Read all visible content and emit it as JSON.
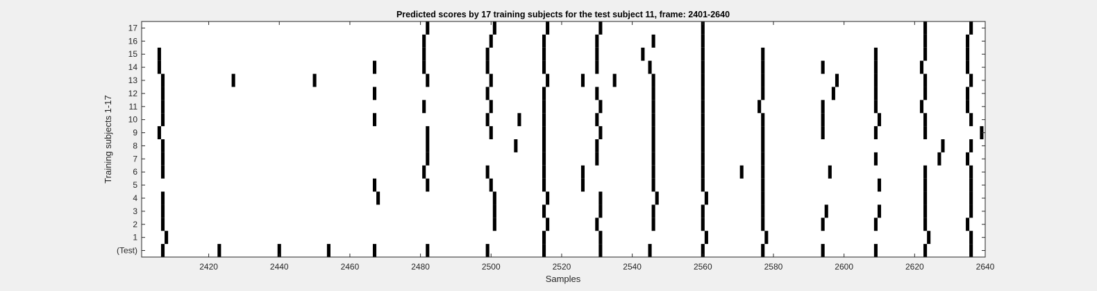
{
  "chart_data": {
    "type": "raster",
    "title": "Predicted scores by 17 training subjects for the test subject 11, frame: 2401-2640",
    "xlabel": "Samples",
    "ylabel": "Training subjects 1-17",
    "xlim": [
      2401,
      2640
    ],
    "x_ticks": [
      2420,
      2440,
      2460,
      2480,
      2500,
      2520,
      2540,
      2560,
      2580,
      2600,
      2620,
      2640
    ],
    "y_tick_labels": [
      "(Test)",
      "1",
      "2",
      "3",
      "4",
      "5",
      "6",
      "7",
      "8",
      "9",
      "10",
      "11",
      "12",
      "13",
      "14",
      "15",
      "16",
      "17"
    ],
    "grid": false,
    "series": [
      {
        "name": "(Test)",
        "events": [
          2407,
          2423,
          2440,
          2454,
          2467,
          2482,
          2499,
          2515,
          2531,
          2545,
          2560,
          2577,
          2594,
          2609,
          2623,
          2636
        ]
      },
      {
        "name": "1",
        "events": [
          2408,
          2515,
          2531,
          2561,
          2578,
          2624,
          2636
        ]
      },
      {
        "name": "2",
        "events": [
          2407,
          2501,
          2516,
          2530,
          2546,
          2560,
          2577,
          2594,
          2609,
          2623,
          2635
        ]
      },
      {
        "name": "3",
        "events": [
          2407,
          2501,
          2515,
          2531,
          2546,
          2560,
          2577,
          2595,
          2610,
          2623,
          2636
        ]
      },
      {
        "name": "4",
        "events": [
          2407,
          2468,
          2501,
          2516,
          2531,
          2547,
          2561,
          2577,
          2623,
          2636
        ]
      },
      {
        "name": "5",
        "events": [
          2467,
          2482,
          2500,
          2515,
          2526,
          2546,
          2560,
          2577,
          2610,
          2623,
          2636
        ]
      },
      {
        "name": "6",
        "events": [
          2407,
          2481,
          2499,
          2515,
          2526,
          2546,
          2560,
          2571,
          2577,
          2596,
          2623,
          2636
        ]
      },
      {
        "name": "7",
        "events": [
          2407,
          2482,
          2515,
          2530,
          2546,
          2560,
          2577,
          2609,
          2627,
          2635
        ]
      },
      {
        "name": "8",
        "events": [
          2407,
          2482,
          2507,
          2515,
          2530,
          2546,
          2560,
          2577,
          2628,
          2636
        ]
      },
      {
        "name": "9",
        "events": [
          2406,
          2482,
          2500,
          2515,
          2531,
          2546,
          2560,
          2577,
          2594,
          2609,
          2623,
          2639
        ]
      },
      {
        "name": "10",
        "events": [
          2407,
          2467,
          2499,
          2508,
          2515,
          2530,
          2546,
          2560,
          2577,
          2594,
          2610,
          2623,
          2636
        ]
      },
      {
        "name": "11",
        "events": [
          2407,
          2481,
          2500,
          2515,
          2531,
          2546,
          2560,
          2576,
          2594,
          2609,
          2622,
          2635
        ]
      },
      {
        "name": "12",
        "events": [
          2407,
          2467,
          2499,
          2515,
          2530,
          2546,
          2560,
          2577,
          2597,
          2609,
          2623,
          2635
        ]
      },
      {
        "name": "13",
        "events": [
          2407,
          2427,
          2450,
          2482,
          2500,
          2516,
          2526,
          2535,
          2546,
          2560,
          2577,
          2598,
          2609,
          2623,
          2636
        ]
      },
      {
        "name": "14",
        "events": [
          2406,
          2467,
          2481,
          2499,
          2515,
          2530,
          2545,
          2560,
          2577,
          2594,
          2609,
          2622,
          2635
        ]
      },
      {
        "name": "15",
        "events": [
          2406,
          2481,
          2499,
          2515,
          2530,
          2543,
          2560,
          2577,
          2609,
          2623,
          2635
        ]
      },
      {
        "name": "16",
        "events": [
          2481,
          2500,
          2515,
          2530,
          2546,
          2560,
          2623,
          2635
        ]
      },
      {
        "name": "17",
        "events": [
          2482,
          2501,
          2516,
          2531,
          2560,
          2623,
          2636
        ]
      }
    ]
  }
}
